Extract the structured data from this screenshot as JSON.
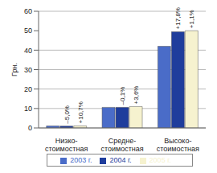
{
  "chart_data": {
    "type": "bar",
    "y_label": "Грн.",
    "categories": [
      "Низко-стоимостная",
      "Средне-стоимостная",
      "Высоко-стоимостная"
    ],
    "series": [
      {
        "name": "2003 г.",
        "color": "#4a6cc8",
        "values": [
          1.0,
          10.6,
          42.0
        ]
      },
      {
        "name": "2004 г.",
        "color": "#1f3d9c",
        "values": [
          0.95,
          10.6,
          49.5
        ],
        "annotations": [
          "–5,0%",
          "–0,1%",
          "+17,8%"
        ]
      },
      {
        "name": "2005 г.",
        "color": "#f6f2cf",
        "values": [
          1.05,
          11.0,
          50.0
        ],
        "annotations": [
          "+10,7%",
          "+3,6%",
          "+1,1%"
        ]
      }
    ],
    "ylim": [
      0,
      60
    ],
    "yticks": [
      0,
      10,
      20,
      30,
      40,
      50,
      60
    ],
    "grid": true,
    "legend": "bottom"
  }
}
